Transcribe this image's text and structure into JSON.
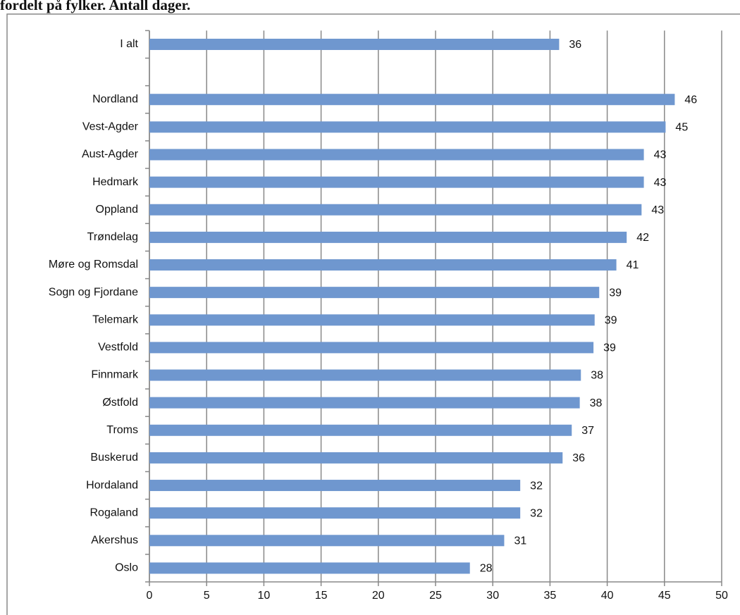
{
  "chart_data": {
    "type": "bar",
    "orientation": "horizontal",
    "title": "fordelt på fylker. Antall dager.",
    "categories": [
      "I alt",
      null,
      "Nordland",
      "Vest-Agder",
      "Aust-Agder",
      "Hedmark",
      "Oppland",
      "Trøndelag",
      "Møre og Romsdal",
      "Sogn og Fjordane",
      "Telemark",
      "Vestfold",
      "Finnmark",
      "Østfold",
      "Troms",
      "Buskerud",
      "Hordaland",
      "Rogaland",
      "Akershus",
      "Oslo"
    ],
    "values": [
      35.8,
      null,
      45.9,
      45.1,
      43.2,
      43.2,
      43.0,
      41.7,
      40.8,
      39.3,
      38.9,
      38.8,
      37.7,
      37.6,
      36.9,
      36.1,
      32.4,
      32.4,
      31.0,
      28.0
    ],
    "value_labels": [
      "36",
      null,
      "46",
      "45",
      "43",
      "43",
      "43",
      "42",
      "41",
      "39",
      "39",
      "39",
      "38",
      "38",
      "37",
      "36",
      "32",
      "32",
      "31",
      "28"
    ],
    "color": "#6f97cf",
    "xlim": [
      0,
      50
    ],
    "xticks": [
      0,
      5,
      10,
      15,
      20,
      25,
      30,
      35,
      40,
      45,
      50
    ],
    "grid": true
  }
}
